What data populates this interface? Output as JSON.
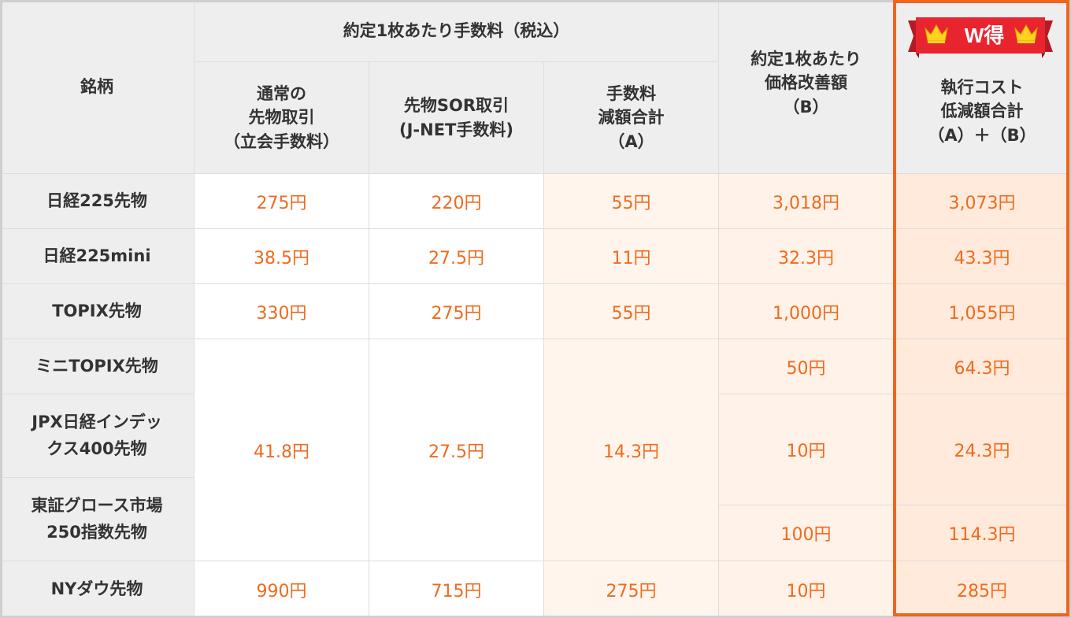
{
  "header": {
    "brand": "銘柄",
    "fee_group": "約定1枚あたり手数料（税込）",
    "col_normal": [
      "通常の",
      "先物取引",
      "（立会手数料）"
    ],
    "col_sor": [
      "先物SOR取引",
      "(J-NET手数料)"
    ],
    "col_fee_reduction": [
      "手数料",
      "減額合計",
      "（A）"
    ],
    "col_price_improvement": [
      "約定1枚あたり",
      "価格改善額",
      "（B）"
    ],
    "col_total": [
      "執行コスト",
      "低減額合計",
      "（A）＋（B）"
    ],
    "badge": "W得"
  },
  "rows": [
    {
      "name": "日経225先物",
      "normal": "275円",
      "sor": "220円",
      "reduction": "55円",
      "improvement": "3,018円",
      "total": "3,073円"
    },
    {
      "name": "日経225mini",
      "normal": "38.5円",
      "sor": "27.5円",
      "reduction": "11円",
      "improvement": "32.3円",
      "total": "43.3円"
    },
    {
      "name": "TOPIX先物",
      "normal": "330円",
      "sor": "275円",
      "reduction": "55円",
      "improvement": "1,000円",
      "total": "1,055円"
    },
    {
      "name": "ミニTOPIX先物",
      "improvement": "50円",
      "total": "64.3円"
    },
    {
      "name": [
        "JPX日経インデッ",
        "クス400先物"
      ],
      "improvement": "10円",
      "total": "24.3円"
    },
    {
      "name": [
        "東証グロース市場",
        "250指数先物"
      ],
      "improvement": "100円",
      "total": "114.3円"
    },
    {
      "name": "NYダウ先物",
      "normal": "990円",
      "sor": "715円",
      "reduction": "275円",
      "improvement": "10円",
      "total": "285円"
    }
  ],
  "merged": {
    "normal": "41.8円",
    "sor": "27.5円",
    "reduction": "14.3円"
  },
  "icons": {
    "crown": "crown-icon"
  },
  "colors": {
    "accent": "#f0641e",
    "value_text": "#f06a1e",
    "header_bg": "#eeeeee",
    "ribbon": "#e8252f"
  }
}
